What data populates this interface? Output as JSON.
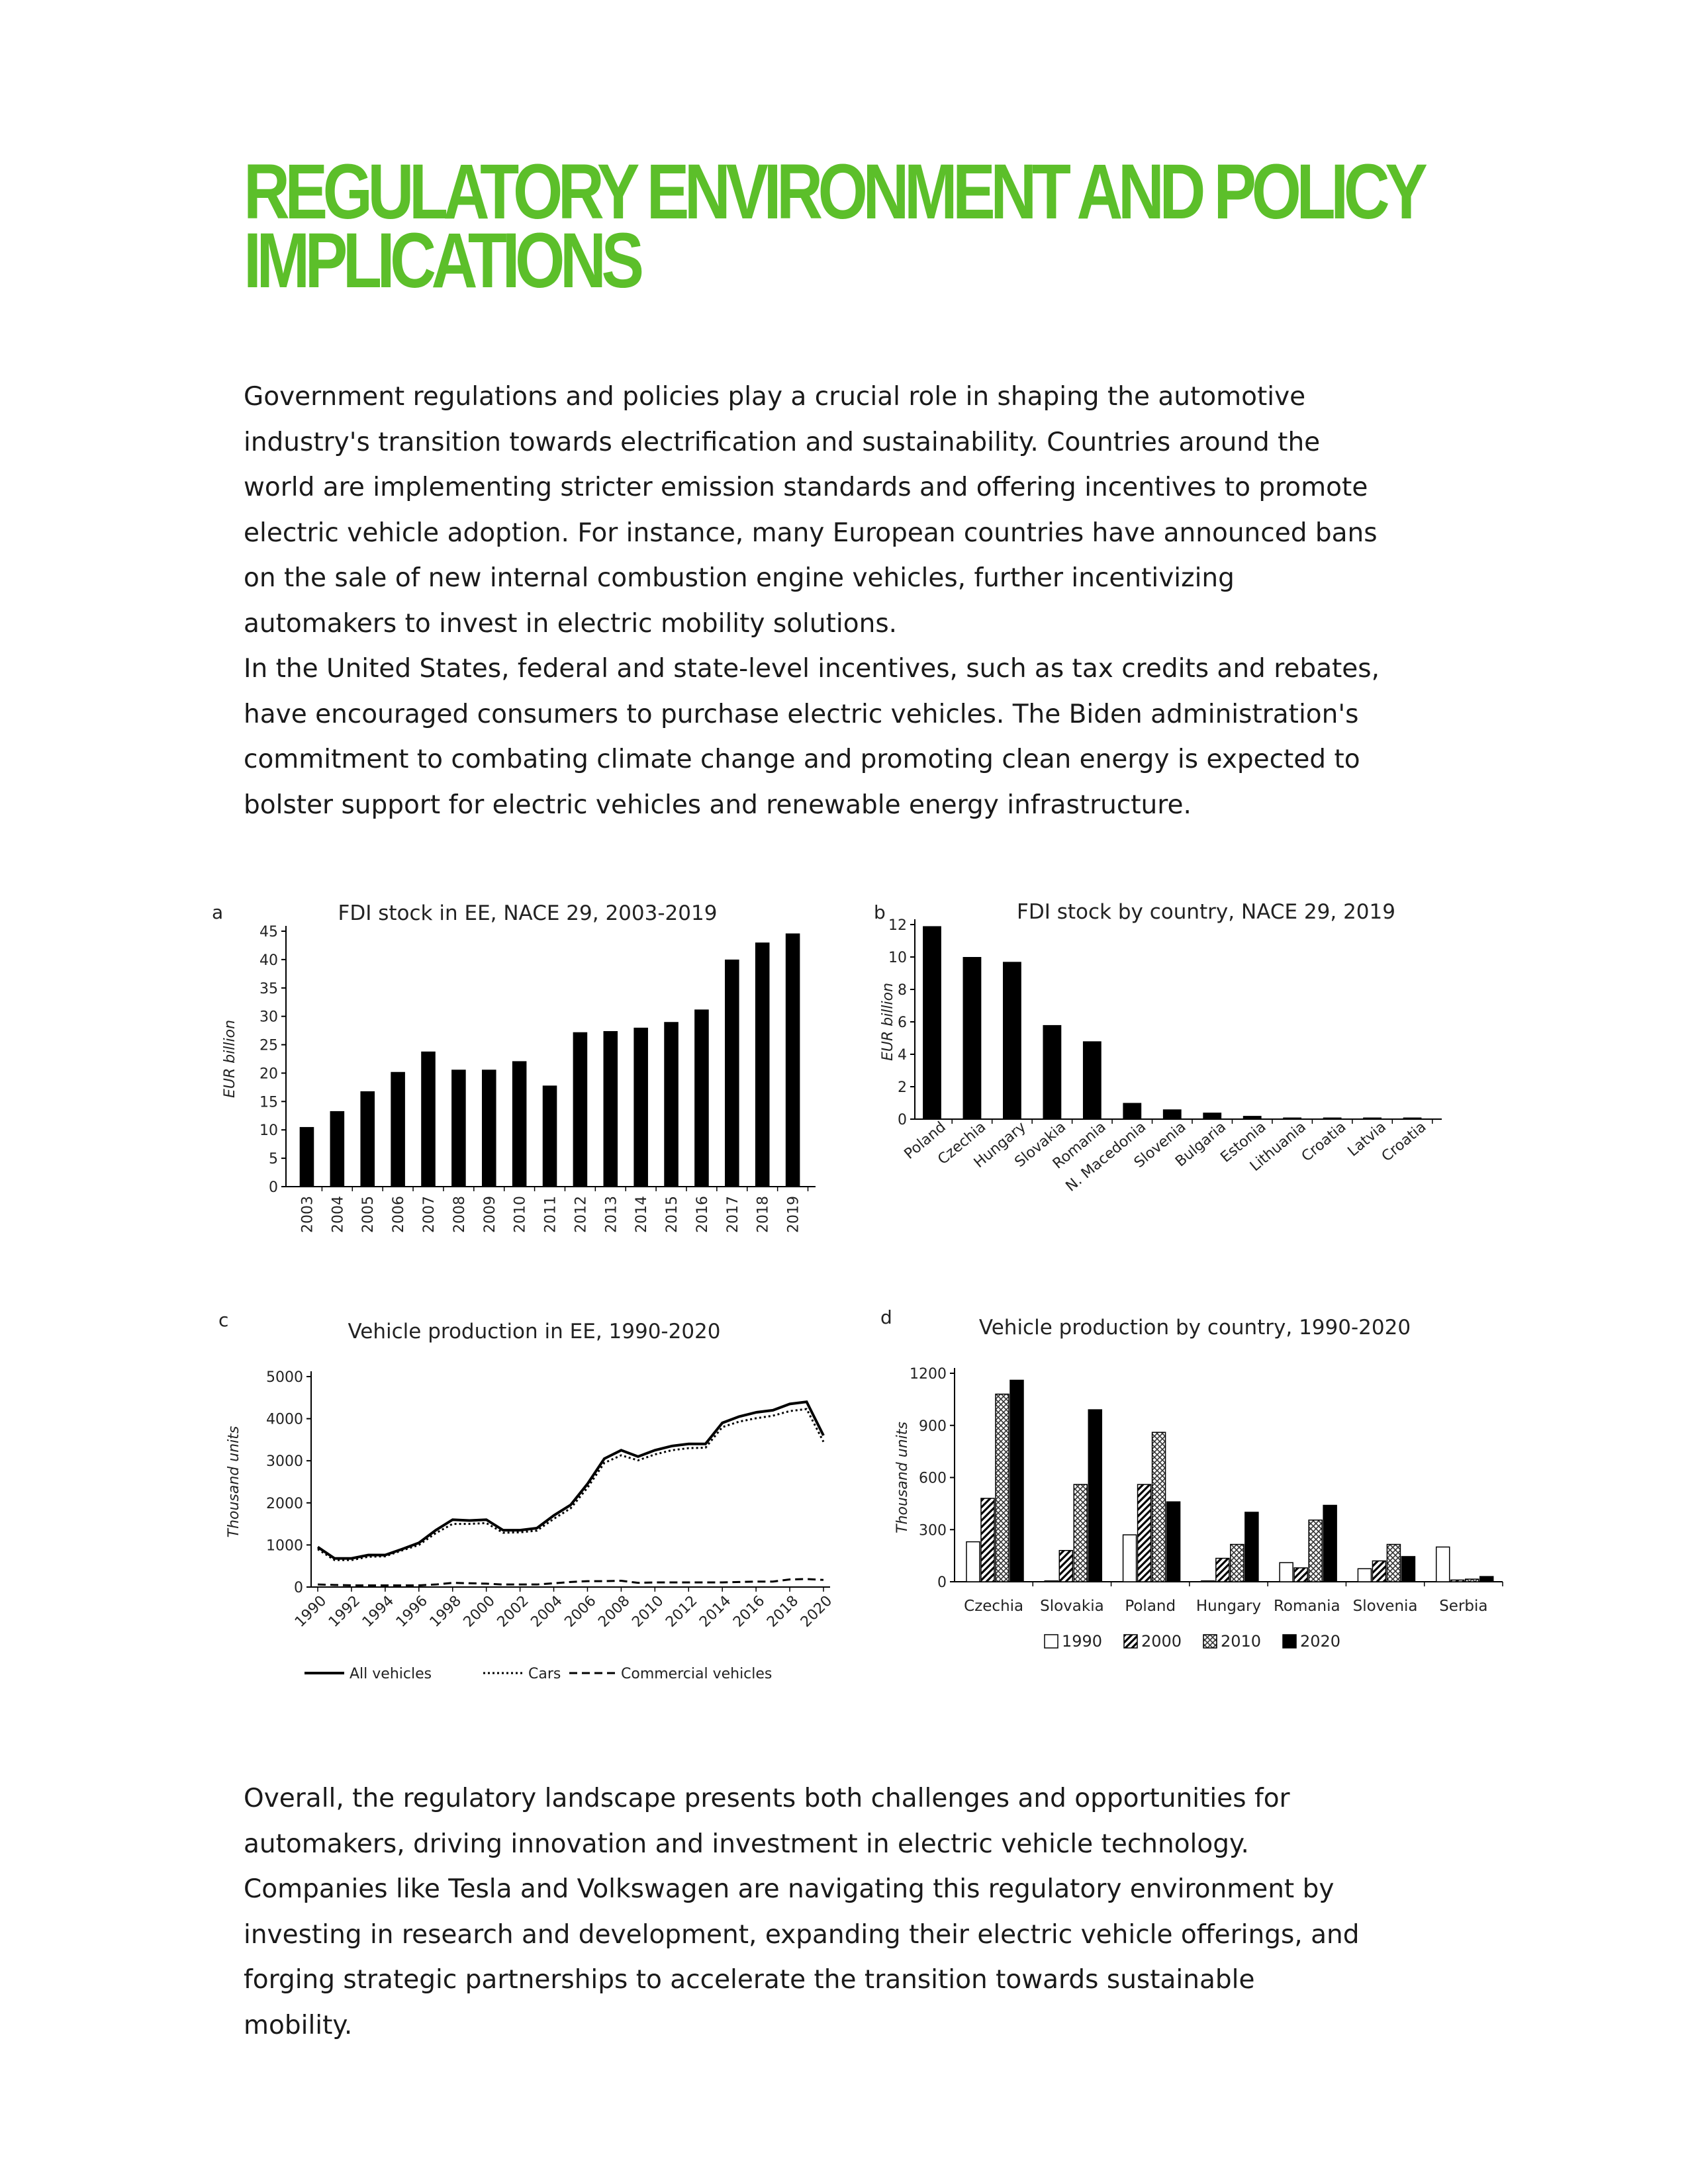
{
  "heading": {
    "line1": "REGULATORY ENVIRONMENT AND POLICY",
    "line2": "IMPLICATIONS"
  },
  "para1": {
    "lines": [
      "Government regulations and policies play a crucial role in shaping the automotive",
      "industry's transition towards electrification and sustainability. Countries around the",
      "world are implementing stricter emission standards and offering incentives to promote",
      "electric vehicle adoption. For instance, many European countries have announced bans",
      "on the sale of new internal combustion engine vehicles, further incentivizing",
      "automakers to invest in electric mobility solutions.",
      "In the United States, federal and state-level incentives, such as tax credits and rebates,",
      "have encouraged consumers to purchase electric vehicles. The Biden administration's",
      "commitment to combating climate change and promoting clean energy is expected to",
      "bolster support for electric vehicles and renewable energy infrastructure."
    ]
  },
  "para2": {
    "lines": [
      "Overall, the regulatory landscape presents both challenges and opportunities for",
      "automakers, driving innovation and investment in electric vehicle technology.",
      "Companies like Tesla and Volkswagen are navigating this regulatory environment by",
      "investing in research and development, expanding their electric vehicle offerings, and",
      "forging strategic partnerships to accelerate the transition towards sustainable",
      "mobility."
    ]
  },
  "chart_data": [
    {
      "panel": "a",
      "type": "bar",
      "title": "FDI stock in EE, NACE 29, 2003-2019",
      "ylabel": "EUR billion",
      "xlabel": "",
      "ylim": [
        0,
        45
      ],
      "yticks": [
        0,
        5,
        10,
        15,
        20,
        25,
        30,
        35,
        40,
        45
      ],
      "categories": [
        "2003",
        "2004",
        "2005",
        "2006",
        "2007",
        "2008",
        "2009",
        "2010",
        "2011",
        "2012",
        "2013",
        "2014",
        "2015",
        "2016",
        "2017",
        "2018",
        "2019"
      ],
      "values": [
        10.5,
        13.3,
        16.8,
        20.2,
        23.8,
        20.6,
        20.6,
        22.1,
        17.8,
        27.2,
        27.4,
        28.0,
        29.0,
        31.2,
        40.0,
        43.0,
        44.6
      ],
      "bar_color": "#000000"
    },
    {
      "panel": "b",
      "type": "bar",
      "title": "FDI stock by country, NACE 29, 2019",
      "ylabel": "EUR billion",
      "xlabel": "",
      "ylim": [
        0,
        12
      ],
      "yticks": [
        0,
        2,
        4,
        6,
        8,
        10,
        12
      ],
      "categories": [
        "Poland",
        "Czechia",
        "Hungary",
        "Slovakia",
        "Romania",
        "N. Macedonia",
        "Slovenia",
        "Bulgaria",
        "Estonia",
        "Lithuania",
        "Croatia",
        "Latvia",
        "Croatia"
      ],
      "values": [
        11.9,
        10.0,
        9.7,
        5.8,
        4.8,
        1.0,
        0.6,
        0.4,
        0.2,
        0.1,
        0.1,
        0.1,
        0.1
      ],
      "bar_color": "#000000"
    },
    {
      "panel": "c",
      "type": "line",
      "title": "Vehicle production in EE, 1990-2020",
      "ylabel": "Thousand units",
      "xlabel": "",
      "ylim": [
        0,
        5000
      ],
      "yticks": [
        0,
        1000,
        2000,
        3000,
        4000,
        5000
      ],
      "x": [
        1990,
        1991,
        1992,
        1993,
        1994,
        1995,
        1996,
        1997,
        1998,
        1999,
        2000,
        2001,
        2002,
        2003,
        2004,
        2005,
        2006,
        2007,
        2008,
        2009,
        2010,
        2011,
        2012,
        2013,
        2014,
        2015,
        2016,
        2017,
        2018,
        2019,
        2020
      ],
      "xticks": [
        "1990",
        "1992",
        "1994",
        "1996",
        "1998",
        "2000",
        "2002",
        "2004",
        "2006",
        "2008",
        "2010",
        "2012",
        "2014",
        "2016",
        "2018",
        "2020"
      ],
      "series": [
        {
          "name": "All vehicles",
          "style": "solid",
          "values": [
            950,
            680,
            680,
            760,
            760,
            900,
            1050,
            1350,
            1600,
            1580,
            1600,
            1350,
            1350,
            1400,
            1700,
            1950,
            2450,
            3050,
            3250,
            3100,
            3250,
            3350,
            3400,
            3400,
            3900,
            4050,
            4150,
            4200,
            4350,
            4400,
            3600
          ]
        },
        {
          "name": "Cars",
          "style": "dotted",
          "values": [
            900,
            640,
            640,
            720,
            730,
            870,
            1000,
            1280,
            1500,
            1500,
            1520,
            1290,
            1300,
            1340,
            1620,
            1870,
            2360,
            2950,
            3130,
            3010,
            3150,
            3250,
            3300,
            3310,
            3800,
            3930,
            4010,
            4070,
            4180,
            4230,
            3450
          ]
        },
        {
          "name": "Commercial vehicles",
          "style": "dashed",
          "values": [
            60,
            50,
            40,
            40,
            40,
            40,
            40,
            60,
            100,
            90,
            80,
            60,
            60,
            60,
            90,
            120,
            140,
            140,
            150,
            100,
            110,
            110,
            110,
            110,
            110,
            120,
            130,
            130,
            180,
            190,
            170
          ]
        }
      ],
      "legend": "bottom"
    },
    {
      "panel": "d",
      "type": "bar",
      "title": "Vehicle production by country, 1990-2020",
      "ylabel": "Thousand units",
      "xlabel": "",
      "ylim": [
        0,
        1200
      ],
      "yticks": [
        0,
        300,
        600,
        900,
        1200
      ],
      "categories": [
        "Czechia",
        "Slovakia",
        "Poland",
        "Hungary",
        "Romania",
        "Slovenia",
        "Serbia"
      ],
      "series": [
        {
          "name": "1990",
          "fill": "white",
          "values": [
            230,
            5,
            270,
            5,
            110,
            75,
            200
          ]
        },
        {
          "name": "2000",
          "fill": "diagonal",
          "values": [
            480,
            180,
            560,
            135,
            80,
            120,
            10
          ]
        },
        {
          "name": "2010",
          "fill": "crosshatch",
          "values": [
            1080,
            560,
            860,
            215,
            355,
            215,
            15
          ]
        },
        {
          "name": "2020",
          "fill": "black",
          "values": [
            1160,
            990,
            460,
            400,
            440,
            145,
            30
          ]
        }
      ],
      "legend": "bottom"
    }
  ]
}
